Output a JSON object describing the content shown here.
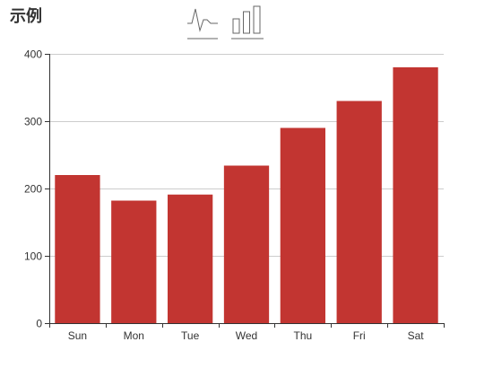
{
  "title": "示例",
  "toolbox": {
    "items": [
      "line-icon",
      "bar-icon"
    ]
  },
  "colors": {
    "bar": "#c23531",
    "axis": "#333333",
    "grid": "#cccccc"
  },
  "chart_data": {
    "type": "bar",
    "categories": [
      "Sun",
      "Mon",
      "Tue",
      "Wed",
      "Thu",
      "Fri",
      "Sat"
    ],
    "series": [
      {
        "values": [
          220,
          182,
          191,
          234,
          290,
          330,
          380
        ]
      }
    ],
    "ylim": [
      0,
      400
    ],
    "yticks": [
      0,
      100,
      200,
      300,
      400
    ],
    "grid": true
  }
}
